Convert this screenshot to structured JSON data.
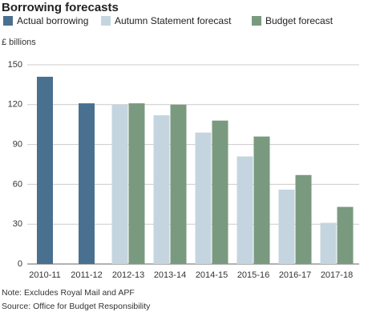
{
  "chart_data": {
    "type": "bar",
    "title": "Borrowing forecasts",
    "y_label": "£ billions",
    "categories": [
      "2010-11",
      "2011-12",
      "2012-13",
      "2013-14",
      "2014-15",
      "2015-16",
      "2016-17",
      "2017-18"
    ],
    "series": [
      {
        "name": "Actual borrowing",
        "color": "#4a7090",
        "values": [
          141,
          121,
          null,
          null,
          null,
          null,
          null,
          null
        ]
      },
      {
        "name": "Autumn Statement forecast",
        "color": "#c5d5df",
        "values": [
          null,
          null,
          120,
          112,
          99,
          81,
          56,
          31
        ]
      },
      {
        "name": "Budget forecast",
        "color": "#7a9a80",
        "values": [
          null,
          null,
          121,
          120,
          108,
          96,
          67,
          43
        ]
      }
    ],
    "ylim": [
      0,
      150
    ],
    "yticks": [
      0,
      30,
      60,
      90,
      120,
      150
    ],
    "grid": true,
    "note": "Note: Excludes Royal Mail and APF",
    "source": "Source: Office for Budget Responsibility"
  }
}
